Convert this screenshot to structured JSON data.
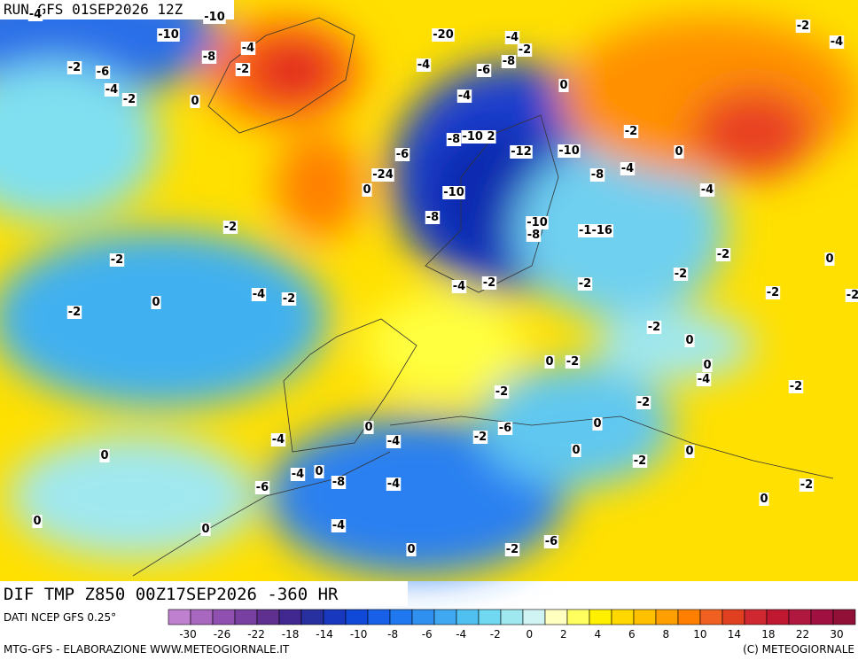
{
  "header": {
    "run": "RUN GFS 01SEP2026 12Z"
  },
  "footer": {
    "field": "DIF TMP Z850 00Z17SEP2026 -360 HR",
    "source": "DATI NCEP GFS 0.25°",
    "credit": "MTG-GFS - ELABORAZIONE WWW.METEOGIORNALE.IT",
    "copyright": "(C) METEOGIORNALE"
  },
  "colorbar": {
    "colors": [
      "#c080d0",
      "#a868c0",
      "#9050b0",
      "#7840a0",
      "#603090",
      "#402890",
      "#2830a0",
      "#1838c0",
      "#1048d8",
      "#1860e8",
      "#2078f0",
      "#3090f0",
      "#40a8f0",
      "#50c0f0",
      "#70d8f0",
      "#a0e8f0",
      "#d0f4f4",
      "#ffffc0",
      "#ffff60",
      "#fff000",
      "#ffd800",
      "#ffc000",
      "#ffa000",
      "#ff8000",
      "#f06020",
      "#e04020",
      "#d02830",
      "#c01830",
      "#b01840",
      "#a01040",
      "#901038"
    ],
    "labels": [
      -30,
      -26,
      -22,
      -18,
      -14,
      -10,
      -8,
      -6,
      -4,
      -2,
      0,
      2,
      4,
      6,
      8,
      10,
      14,
      18,
      22,
      30
    ]
  },
  "map": {
    "contour_labels": [
      -4,
      -10,
      -10,
      -8,
      -4,
      -2,
      -6,
      -4,
      -2,
      0,
      -2,
      -20,
      -4,
      -2,
      -4,
      -6,
      -8,
      0,
      -4,
      -8,
      "-10 2",
      -12,
      -10,
      -2,
      0,
      -6,
      -24,
      0,
      -8,
      -4,
      -10,
      -8,
      -10,
      -8,
      "-1-16",
      -4,
      -2,
      -2,
      -2,
      -2,
      -4,
      0,
      -4,
      -2,
      -2,
      -2,
      -4,
      -2,
      -2,
      0,
      -2,
      -2,
      -2,
      0,
      0,
      -2,
      0,
      -4,
      -2,
      -2,
      -2,
      0,
      0,
      -6,
      -2,
      0,
      -4,
      -4,
      0,
      -2,
      0,
      0,
      -4,
      -8,
      -6,
      -4,
      -2,
      0,
      0,
      0,
      -4,
      0,
      -2,
      -6
    ]
  }
}
